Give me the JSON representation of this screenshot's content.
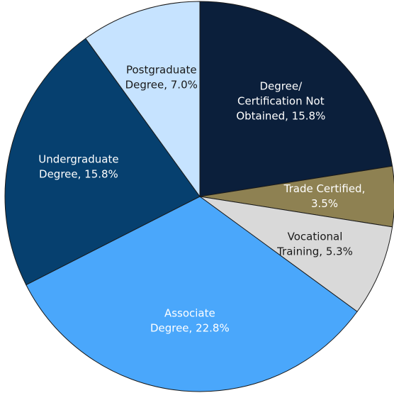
{
  "chart_data": {
    "type": "pie",
    "values": [
      15.8,
      3.5,
      5.3,
      22.8,
      15.8,
      7.0
    ],
    "value_labels": [
      [
        "Degree/",
        "Certification Not",
        "Obtained, 15.8%"
      ],
      [
        "Trade Certified,",
        "3.5%"
      ],
      [
        "Vocational",
        "Training, 5.3%"
      ],
      [
        "Associate",
        "Degree, 22.8%"
      ],
      [
        "Undergraduate",
        "Degree, 15.8%"
      ],
      [
        "Postgraduate",
        "Degree, 7.0%"
      ]
    ],
    "colors": [
      "#0b1f3b",
      "#8e8152",
      "#d9d9d9",
      "#4aa7fb",
      "#06406f",
      "#c6e3ff"
    ],
    "label_colors": [
      "#ffffff",
      "#ffffff",
      "#1a1a1a",
      "#ffffff",
      "#ffffff",
      "#1a1a1a"
    ]
  }
}
